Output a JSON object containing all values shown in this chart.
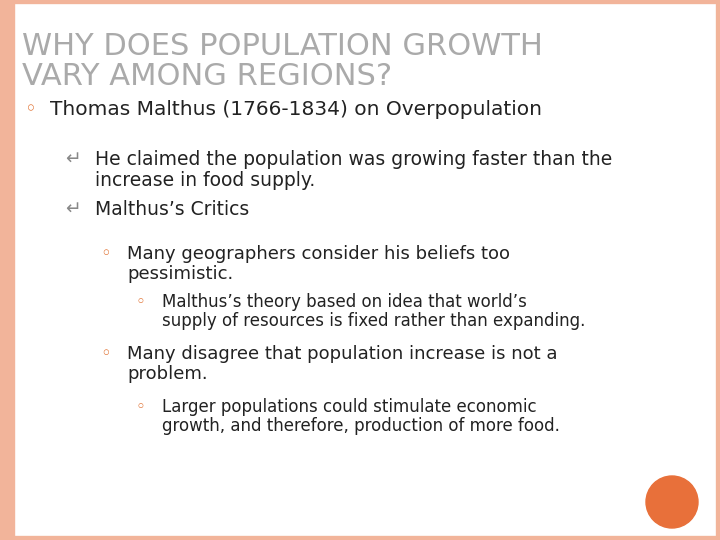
{
  "title_line1": "WHY DOES POPULATION GROWTH",
  "title_line2": "VARY AMONG REGIONS?",
  "title_color": "#aaaaaa",
  "title_fontsize": 22,
  "background_color": "#ffffff",
  "border_color": "#f2b49a",
  "border_width": 6,
  "text_color": "#222222",
  "bullet_color_l0": "#e07030",
  "bullet_color_l1": "#888888",
  "bullet_color_l2": "#e07030",
  "bullet_color_l3": "#e07030",
  "orange_dot_color": "#e8703a",
  "lines": [
    {
      "level": 0,
      "bullet": "◦",
      "text1": "Thomas Malthus (1766-1834) on Overpopulation",
      "text2": "",
      "fontsize": 14.5
    },
    {
      "level": 1,
      "bullet": "↵",
      "text1": "He claimed the population was growing faster than the",
      "text2": "increase in food supply.",
      "fontsize": 13.5
    },
    {
      "level": 1,
      "bullet": "↵",
      "text1": "Malthus’s Critics",
      "text2": "",
      "fontsize": 13.5
    },
    {
      "level": 2,
      "bullet": "◦",
      "text1": "Many geographers consider his beliefs too",
      "text2": "pessimistic.",
      "fontsize": 13
    },
    {
      "level": 3,
      "bullet": "◦",
      "text1": "Malthus’s theory based on idea that world’s",
      "text2": "supply of resources is fixed rather than expanding.",
      "fontsize": 12
    },
    {
      "level": 2,
      "bullet": "◦",
      "text1": "Many disagree that population increase is not a",
      "text2": "problem.",
      "fontsize": 13
    },
    {
      "level": 3,
      "bullet": "◦",
      "text1": "Larger populations could stimulate economic",
      "text2": "growth, and therefore, production of more food.",
      "fontsize": 12
    }
  ]
}
